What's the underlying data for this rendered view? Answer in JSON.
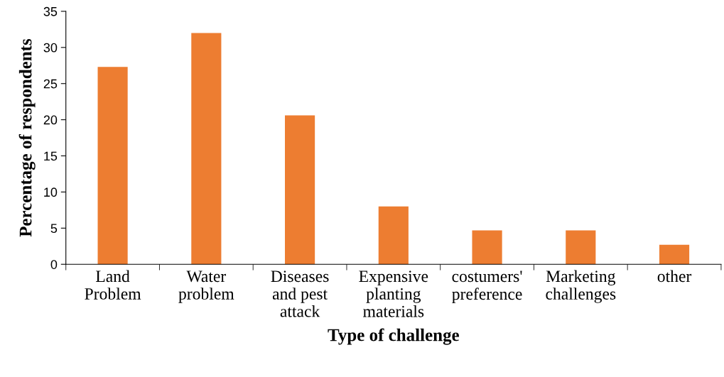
{
  "chart_data": {
    "type": "bar",
    "categories": [
      "Land\nProblem",
      "Water\nproblem",
      "Diseases\nand pest\nattack",
      "Expensive\nplanting\nmaterials",
      "costumers'\npreference",
      "Marketing\nchallenges",
      "other"
    ],
    "values": [
      27.3,
      32.0,
      20.6,
      8.0,
      4.7,
      4.7,
      2.7
    ],
    "color": "#ed7d31",
    "xlabel": "Type of challenge",
    "ylabel": "Percentage of respondents",
    "ylim": [
      0,
      35
    ],
    "yticks": [
      0,
      5,
      10,
      15,
      20,
      25,
      30,
      35
    ],
    "grid": false,
    "legend": false
  }
}
